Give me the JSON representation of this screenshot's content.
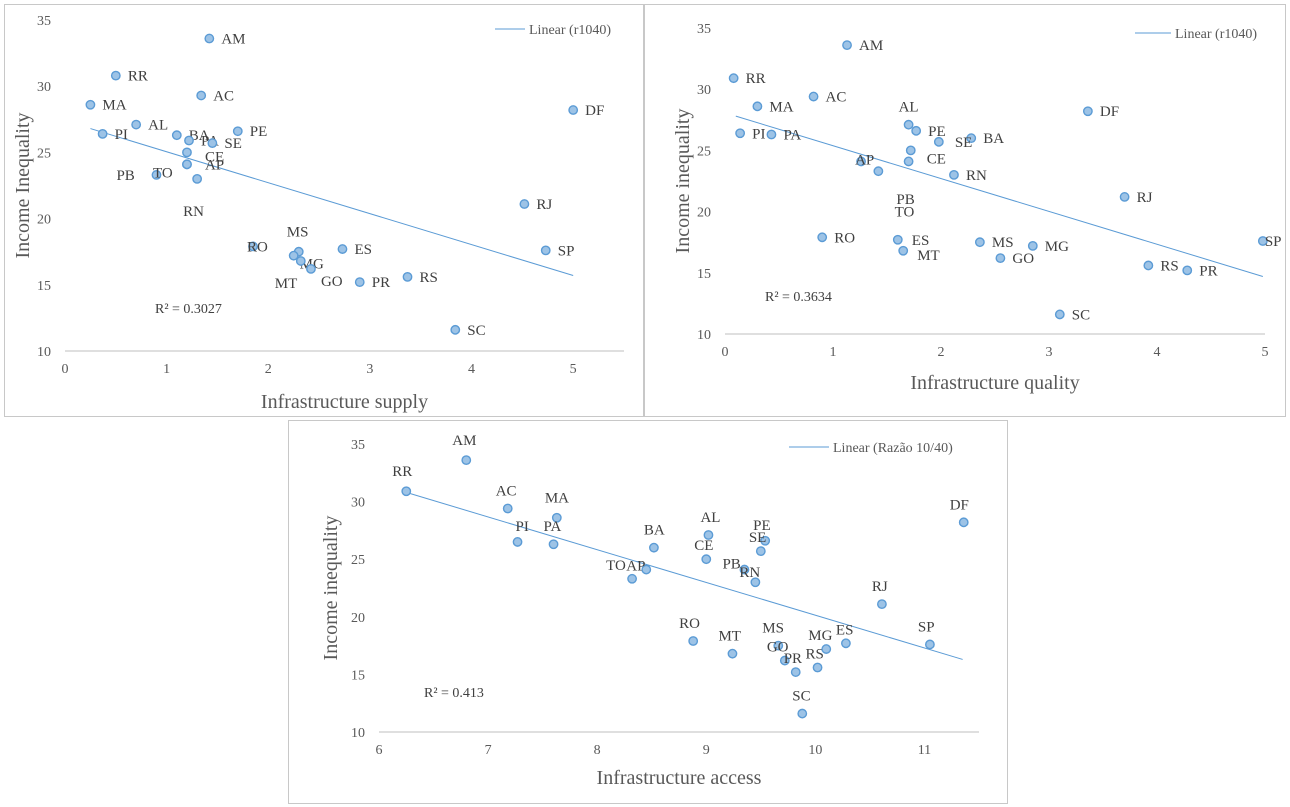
{
  "chart_data": [
    {
      "type": "scatter",
      "xlabel": "Infrastructure supply",
      "ylabel": "Income Inequality",
      "xlim": [
        0,
        5.5
      ],
      "ylim": [
        10,
        35
      ],
      "xticks": [
        0,
        1,
        2,
        3,
        4,
        5
      ],
      "yticks": [
        10,
        15,
        20,
        25,
        30,
        35
      ],
      "legend": "Linear (r1040)",
      "legend_position": "top-right",
      "r2_label": "R² = 0.3027",
      "trend": {
        "from": [
          0.25,
          26.8
        ],
        "to": [
          5.0,
          15.7
        ]
      },
      "points": [
        {
          "label": "AM",
          "x": 1.42,
          "y": 33.6
        },
        {
          "label": "RR",
          "x": 0.5,
          "y": 30.8
        },
        {
          "label": "MA",
          "x": 0.25,
          "y": 28.6
        },
        {
          "label": "AC",
          "x": 1.34,
          "y": 29.3
        },
        {
          "label": "DF",
          "x": 5.0,
          "y": 28.2
        },
        {
          "label": "AL",
          "x": 0.7,
          "y": 27.1
        },
        {
          "label": "PI",
          "x": 0.37,
          "y": 26.4
        },
        {
          "label": "BA",
          "x": 1.1,
          "y": 26.3
        },
        {
          "label": "PA",
          "x": 1.22,
          "y": 25.9
        },
        {
          "label": "PE",
          "x": 1.7,
          "y": 26.6
        },
        {
          "label": "SE",
          "x": 1.45,
          "y": 25.7
        },
        {
          "label": "CE",
          "x": 1.2,
          "y": 25.0
        },
        {
          "label": "PB",
          "x": 0.9,
          "y": 23.3
        },
        {
          "label": "AP",
          "x": 1.2,
          "y": 24.1
        },
        {
          "label": "TO",
          "x": 1.2,
          "y": 24.1
        },
        {
          "label": "RN",
          "x": 1.3,
          "y": 23.0
        },
        {
          "label": "RJ",
          "x": 4.52,
          "y": 21.1
        },
        {
          "label": "RO",
          "x": 1.85,
          "y": 17.9
        },
        {
          "label": "MS",
          "x": 2.3,
          "y": 17.5
        },
        {
          "label": "MG",
          "x": 2.25,
          "y": 17.2
        },
        {
          "label": "ES",
          "x": 2.73,
          "y": 17.7
        },
        {
          "label": "SP",
          "x": 4.73,
          "y": 17.6
        },
        {
          "label": "GO",
          "x": 2.42,
          "y": 16.2
        },
        {
          "label": "MT",
          "x": 2.32,
          "y": 16.8
        },
        {
          "label": "PR",
          "x": 2.9,
          "y": 15.2
        },
        {
          "label": "RS",
          "x": 3.37,
          "y": 15.6
        },
        {
          "label": "SC",
          "x": 3.84,
          "y": 11.6
        }
      ]
    },
    {
      "type": "scatter",
      "xlabel": "Infrastructure quality",
      "ylabel": "Income inequality",
      "xlim": [
        0,
        5
      ],
      "ylim": [
        10,
        35
      ],
      "xticks": [
        0,
        1,
        2,
        3,
        4,
        5
      ],
      "yticks": [
        10,
        15,
        20,
        25,
        30,
        35
      ],
      "legend": "Linear (r1040)",
      "legend_position": "top-right",
      "r2_label": "R² = 0.3634",
      "trend": {
        "from": [
          0.1,
          27.8
        ],
        "to": [
          4.98,
          14.7
        ]
      },
      "points": [
        {
          "label": "AM",
          "x": 1.13,
          "y": 33.6
        },
        {
          "label": "RR",
          "x": 0.08,
          "y": 30.9
        },
        {
          "label": "MA",
          "x": 0.3,
          "y": 28.6
        },
        {
          "label": "AC",
          "x": 0.82,
          "y": 29.4
        },
        {
          "label": "DF",
          "x": 3.36,
          "y": 28.2
        },
        {
          "label": "AL",
          "x": 1.7,
          "y": 27.1
        },
        {
          "label": "PI",
          "x": 0.14,
          "y": 26.4
        },
        {
          "label": "PA",
          "x": 0.43,
          "y": 26.3
        },
        {
          "label": "PE",
          "x": 1.77,
          "y": 26.6
        },
        {
          "label": "BA",
          "x": 2.28,
          "y": 26.0
        },
        {
          "label": "SE",
          "x": 1.98,
          "y": 25.7
        },
        {
          "label": "CE",
          "x": 1.72,
          "y": 25.0
        },
        {
          "label": "AP",
          "x": 1.26,
          "y": 24.1
        },
        {
          "label": "PB",
          "x": 1.42,
          "y": 23.3
        },
        {
          "label": "TO",
          "x": 1.7,
          "y": 24.1
        },
        {
          "label": "RN",
          "x": 2.12,
          "y": 23.0
        },
        {
          "label": "RJ",
          "x": 3.7,
          "y": 21.2
        },
        {
          "label": "RO",
          "x": 0.9,
          "y": 17.9
        },
        {
          "label": "ES",
          "x": 1.6,
          "y": 17.7
        },
        {
          "label": "MT",
          "x": 1.65,
          "y": 16.8
        },
        {
          "label": "MS",
          "x": 2.36,
          "y": 17.5
        },
        {
          "label": "MG",
          "x": 2.85,
          "y": 17.2
        },
        {
          "label": "GO",
          "x": 2.55,
          "y": 16.2
        },
        {
          "label": "SP",
          "x": 4.98,
          "y": 17.6
        },
        {
          "label": "RS",
          "x": 3.92,
          "y": 15.6
        },
        {
          "label": "PR",
          "x": 4.28,
          "y": 15.2
        },
        {
          "label": "SC",
          "x": 3.1,
          "y": 11.6
        }
      ]
    },
    {
      "type": "scatter",
      "xlabel": "Infrastructure access",
      "ylabel": "Income inequality",
      "xlim": [
        6,
        11.5
      ],
      "ylim": [
        10,
        35
      ],
      "xticks": [
        6,
        7,
        8,
        9,
        10,
        11
      ],
      "yticks": [
        10,
        15,
        20,
        25,
        30,
        35
      ],
      "legend": "Linear (Razão 10/40)",
      "legend_position": "top-right",
      "r2_label": "R² = 0.413",
      "trend": {
        "from": [
          6.25,
          30.8
        ],
        "to": [
          11.35,
          16.3
        ]
      },
      "points": [
        {
          "label": "AM",
          "x": 6.8,
          "y": 33.6
        },
        {
          "label": "RR",
          "x": 6.25,
          "y": 30.9
        },
        {
          "label": "AC",
          "x": 7.18,
          "y": 29.4
        },
        {
          "label": "MA",
          "x": 7.63,
          "y": 28.6
        },
        {
          "label": "PI",
          "x": 7.27,
          "y": 26.5
        },
        {
          "label": "PA",
          "x": 7.6,
          "y": 26.3
        },
        {
          "label": "BA",
          "x": 8.52,
          "y": 26.0
        },
        {
          "label": "AL",
          "x": 9.02,
          "y": 27.1
        },
        {
          "label": "PE",
          "x": 9.54,
          "y": 26.6
        },
        {
          "label": "SE",
          "x": 9.5,
          "y": 25.7
        },
        {
          "label": "CE",
          "x": 9.0,
          "y": 25.0
        },
        {
          "label": "AP",
          "x": 8.45,
          "y": 24.1
        },
        {
          "label": "TO",
          "x": 8.32,
          "y": 23.3
        },
        {
          "label": "PB",
          "x": 9.35,
          "y": 24.1
        },
        {
          "label": "RN",
          "x": 9.45,
          "y": 23.0
        },
        {
          "label": "DF",
          "x": 11.36,
          "y": 28.2
        },
        {
          "label": "RJ",
          "x": 10.61,
          "y": 21.1
        },
        {
          "label": "RO",
          "x": 8.88,
          "y": 17.9
        },
        {
          "label": "MT",
          "x": 9.24,
          "y": 16.8
        },
        {
          "label": "MS",
          "x": 9.66,
          "y": 17.5
        },
        {
          "label": "GO",
          "x": 9.72,
          "y": 16.2
        },
        {
          "label": "PR",
          "x": 9.82,
          "y": 15.2
        },
        {
          "label": "RS",
          "x": 10.02,
          "y": 15.6
        },
        {
          "label": "MG",
          "x": 10.1,
          "y": 17.2
        },
        {
          "label": "ES",
          "x": 10.28,
          "y": 17.7
        },
        {
          "label": "SP",
          "x": 11.05,
          "y": 17.6
        },
        {
          "label": "SC",
          "x": 9.88,
          "y": 11.6
        }
      ]
    }
  ]
}
